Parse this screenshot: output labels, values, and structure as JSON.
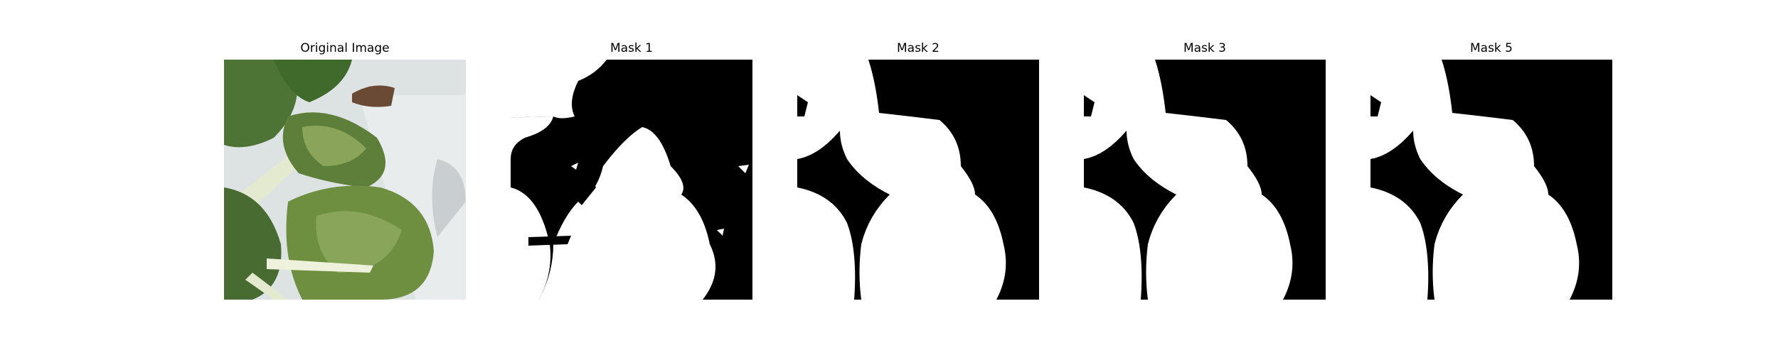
{
  "panels": [
    {
      "title": "Original Image",
      "content": "plant-photo"
    },
    {
      "title": "Mask 1",
      "content": "binary-mask"
    },
    {
      "title": "Mask 2",
      "content": "binary-mask"
    },
    {
      "title": "Mask 3",
      "content": "binary-mask"
    },
    {
      "title": "Mask 5",
      "content": "binary-mask"
    }
  ],
  "colors": {
    "mask_background": "#000000",
    "mask_foreground": "#ffffff",
    "leaf_dark": "#4a6b35",
    "leaf_light": "#7f9b4a",
    "stem": "#dfe6c8",
    "wall": "#dde3e3"
  }
}
